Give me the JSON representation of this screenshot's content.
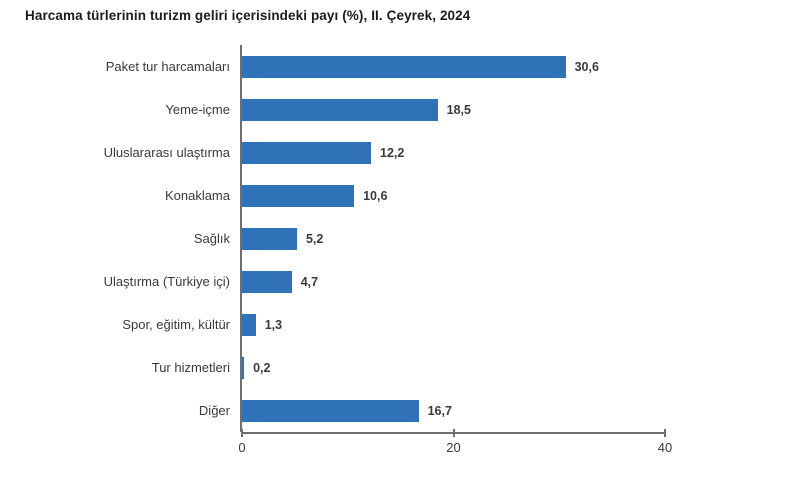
{
  "window": {
    "background": "#ffffff"
  },
  "chart_data": {
    "type": "bar",
    "orientation": "horizontal",
    "title": "Harcama türlerinin turizm geliri içerisindeki payı (%), II. Çeyrek, 2024",
    "categories": [
      "Paket tur harcamaları",
      "Yeme-içme",
      "Uluslararası ulaştırma",
      "Konaklama",
      "Sağlık",
      "Ulaştırma (Türkiye içi)",
      "Spor, eğitim, kültür",
      "Tur hizmetleri",
      "Diğer"
    ],
    "values": [
      30.6,
      18.5,
      12.2,
      10.6,
      5.2,
      4.7,
      1.3,
      0.2,
      16.7
    ],
    "value_labels": [
      "30,6",
      "18,5",
      "12,2",
      "10,6",
      "5,2",
      "4,7",
      "1,3",
      "0,2",
      "16,7"
    ],
    "xlabel": "",
    "ylabel": "",
    "xlim": [
      0,
      40
    ],
    "x_ticks": [
      0,
      20,
      40
    ],
    "x_tick_labels": [
      "0",
      "20",
      "40"
    ],
    "grid": false,
    "legend": false,
    "bar_color": "#2f72b8",
    "axis_color": "#6f6f6f",
    "text_color": "#3a3a3a"
  }
}
